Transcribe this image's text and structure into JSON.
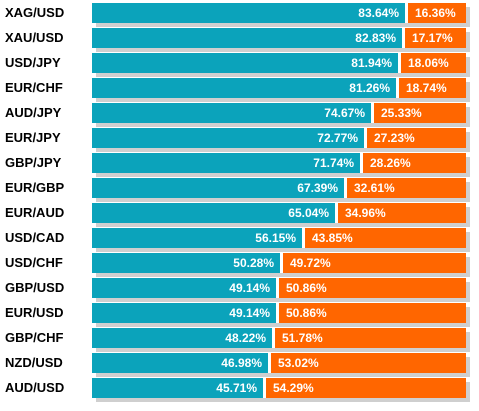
{
  "colors": {
    "long": "#0ba3bb",
    "short": "#ff6600",
    "shadow": "#cfcfcf",
    "label": "#000000",
    "value_text": "#ffffff"
  },
  "chart_data": {
    "type": "bar",
    "orientation": "horizontal",
    "stacked": true,
    "percent_scale": [
      0,
      100
    ],
    "categories": [
      "XAG/USD",
      "XAU/USD",
      "USD/JPY",
      "EUR/CHF",
      "AUD/JPY",
      "EUR/JPY",
      "GBP/JPY",
      "EUR/GBP",
      "EUR/AUD",
      "USD/CAD",
      "USD/CHF",
      "GBP/USD",
      "EUR/USD",
      "GBP/CHF",
      "NZD/USD",
      "AUD/USD"
    ],
    "series": [
      {
        "color": "#0ba3bb",
        "values": [
          83.64,
          82.83,
          81.94,
          81.26,
          74.67,
          72.77,
          71.74,
          67.39,
          65.04,
          56.15,
          50.28,
          49.14,
          49.14,
          48.22,
          46.98,
          45.71
        ],
        "labels": [
          "83.64%",
          "82.83%",
          "81.94%",
          "81.26%",
          "74.67%",
          "72.77%",
          "71.74%",
          "67.39%",
          "65.04%",
          "56.15%",
          "50.28%",
          "49.14%",
          "49.14%",
          "48.22%",
          "46.98%",
          "45.71%"
        ]
      },
      {
        "color": "#ff6600",
        "values": [
          16.36,
          17.17,
          18.06,
          18.74,
          25.33,
          27.23,
          28.26,
          32.61,
          34.96,
          43.85,
          49.72,
          50.86,
          50.86,
          51.78,
          53.02,
          54.29
        ],
        "labels": [
          "16.36%",
          "17.17%",
          "18.06%",
          "18.74%",
          "25.33%",
          "27.23%",
          "28.26%",
          "32.61%",
          "34.96%",
          "43.85%",
          "49.72%",
          "50.86%",
          "50.86%",
          "51.78%",
          "53.02%",
          "54.29%"
        ]
      }
    ],
    "legend": "none",
    "grid": false
  }
}
